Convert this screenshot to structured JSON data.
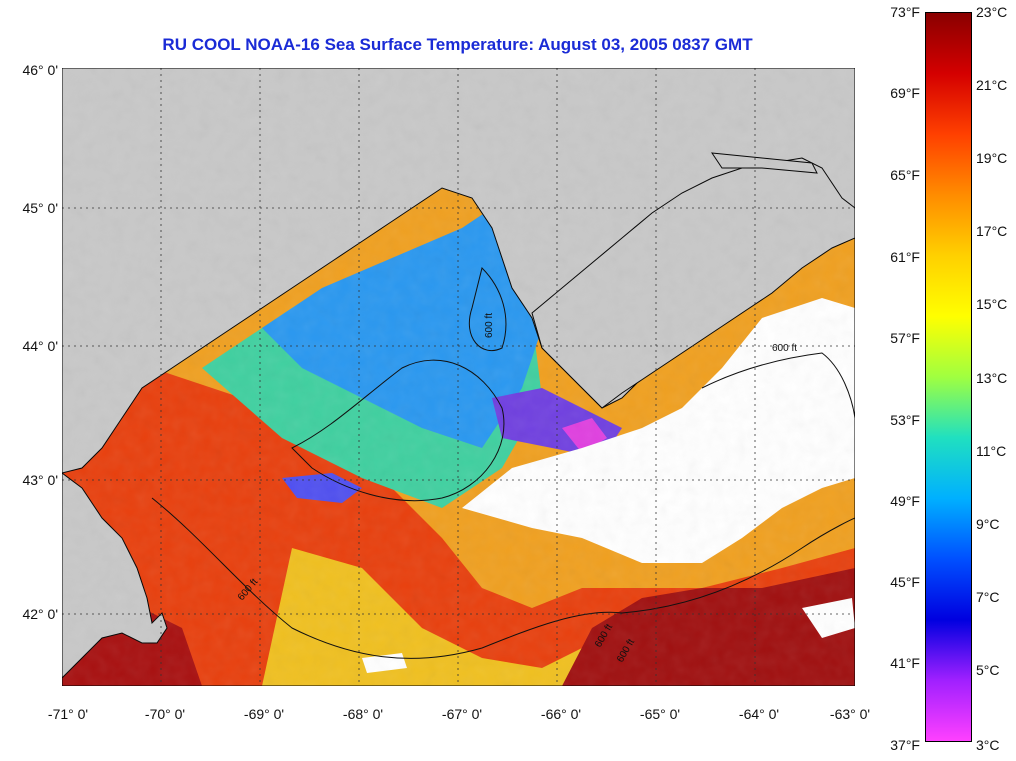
{
  "title": "RU COOL  NOAA-16  Sea Surface Temperature:  August 03, 2005 0837 GMT",
  "latitude_labels": [
    "46° 0'",
    "45° 0'",
    "44° 0'",
    "43° 0'",
    "42° 0'"
  ],
  "longitude_labels": [
    "-71° 0'",
    "-70° 0'",
    "-69° 0'",
    "-68° 0'",
    "-67° 0'",
    "-66° 0'",
    "-65° 0'",
    "-64° 0'",
    "-63° 0'"
  ],
  "fahrenheit_labels": [
    "73°F",
    "69°F",
    "65°F",
    "61°F",
    "57°F",
    "53°F",
    "49°F",
    "45°F",
    "41°F",
    "37°F"
  ],
  "celsius_labels": [
    "23°C",
    "21°C",
    "19°C",
    "17°C",
    "15°C",
    "13°C",
    "11°C",
    "9°C",
    "7°C",
    "5°C",
    "3°C"
  ],
  "contour_label": "600 ft",
  "colors": {
    "title": "#1a2bd6",
    "land": "#c8c8c8",
    "cloud": "#ffffff",
    "warm": "#e63a10",
    "cool": "#2aa0f0",
    "hot": "#9a0a0a"
  },
  "colorbar_stops": [
    "#8a0000",
    "#d40000",
    "#ff4000",
    "#ff8c00",
    "#ffd000",
    "#ffff00",
    "#a0ff40",
    "#20e0c0",
    "#00b0ff",
    "#0050ff",
    "#0000e0",
    "#a020ff",
    "#ff40ff"
  ]
}
